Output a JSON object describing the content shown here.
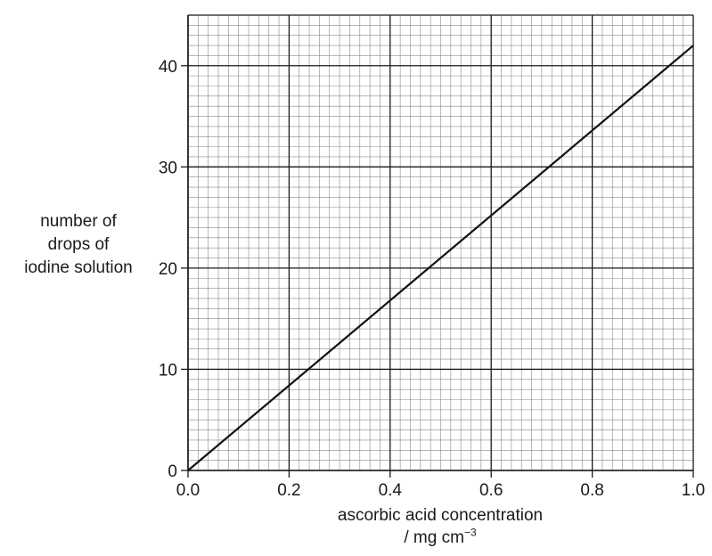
{
  "chart_data": {
    "type": "line",
    "xlabel_line1": "ascorbic acid concentration",
    "xlabel_unit": "/ mg cm",
    "xlabel_unit_exp": "−3",
    "ylabel_lines": [
      "number of",
      "drops of",
      "iodine solution"
    ],
    "xlim": [
      0.0,
      1.0
    ],
    "ylim": [
      0,
      45
    ],
    "x_ticks": [
      0.0,
      0.2,
      0.4,
      0.6,
      0.8,
      1.0
    ],
    "x_tick_labels": [
      "0.0",
      "0.2",
      "0.4",
      "0.6",
      "0.8",
      "1.0"
    ],
    "y_ticks": [
      0,
      10,
      20,
      30,
      40
    ],
    "y_tick_labels": [
      "0",
      "10",
      "20",
      "30",
      "40"
    ],
    "grid": "graph paper (major every 0.2 / 10, minor every 0.02 / 1)",
    "series": [
      {
        "x": [
          0.0,
          1.0
        ],
        "y": [
          0,
          42
        ]
      }
    ]
  }
}
